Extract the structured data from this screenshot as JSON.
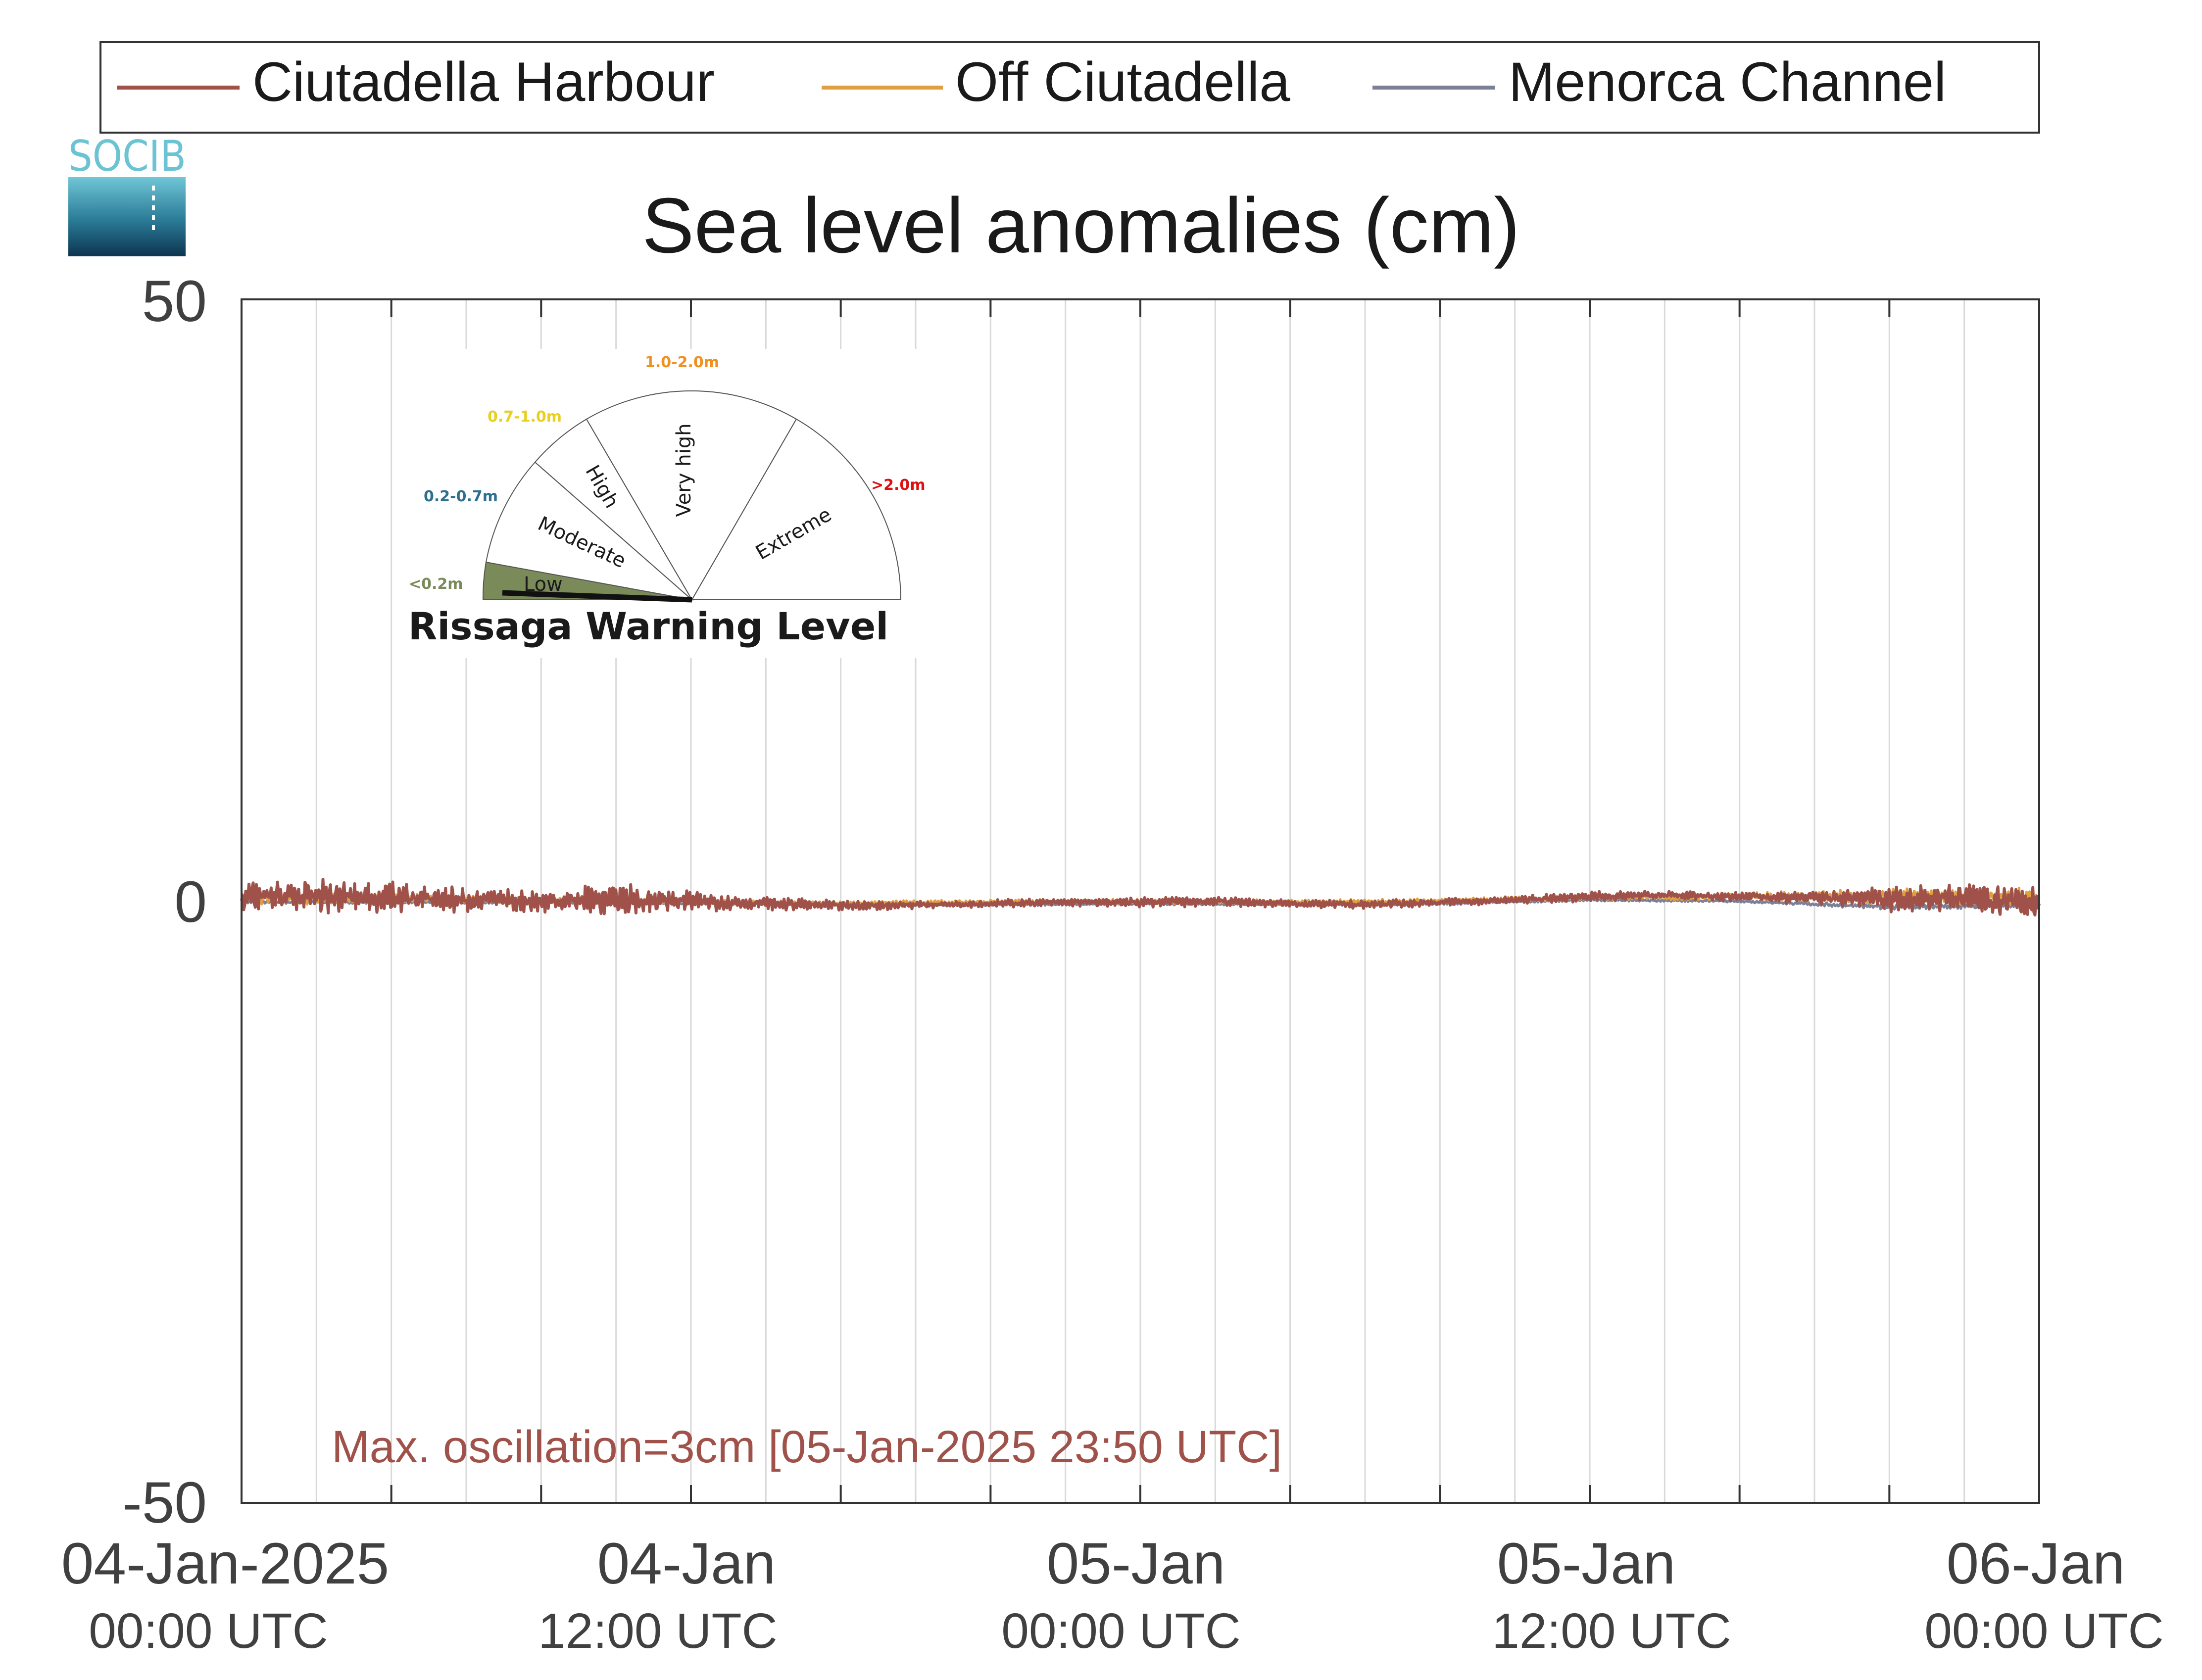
{
  "chart_data": {
    "type": "line",
    "title": "Sea level anomalies (cm)",
    "xlabel": "",
    "ylabel": "",
    "ylim": [
      -50,
      50
    ],
    "yticks": [
      -50,
      0,
      50
    ],
    "xlim": [
      "2025-01-04T00:00",
      "2025-01-06T00:00"
    ],
    "grid": "vertical every 2 h",
    "legend_position": "top",
    "xticks": [
      {
        "at": "2025-01-04T00:00",
        "line1": "04-Jan-2025",
        "line2": "00:00 UTC"
      },
      {
        "at": "2025-01-04T12:00",
        "line1": "04-Jan",
        "line2": "12:00 UTC"
      },
      {
        "at": "2025-01-05T00:00",
        "line1": "05-Jan",
        "line2": "00:00 UTC"
      },
      {
        "at": "2025-01-05T12:00",
        "line1": "05-Jan",
        "line2": "12:00 UTC"
      },
      {
        "at": "2025-01-06T00:00",
        "line1": "06-Jan",
        "line2": "00:00 UTC"
      }
    ],
    "series": [
      {
        "name": "Ciutadella Harbour",
        "color": "#a0524a",
        "x_hours": [
          0,
          2,
          4,
          6,
          8,
          10,
          12,
          14,
          16,
          18,
          20,
          22,
          24,
          26,
          28,
          30,
          32,
          34,
          36,
          38,
          40,
          42,
          44,
          46,
          48
        ],
        "y": [
          0.3,
          0.4,
          0.3,
          0.1,
          0.0,
          0.1,
          0.0,
          -0.2,
          -0.4,
          -0.3,
          -0.2,
          -0.1,
          -0.1,
          0.0,
          -0.2,
          -0.3,
          -0.1,
          0.1,
          0.4,
          0.5,
          0.4,
          0.3,
          0.2,
          0.3,
          -0.2
        ],
        "oscillation_amplitude": [
          1.2,
          1.4,
          1.2,
          1.0,
          0.9,
          1.3,
          0.8,
          0.5,
          0.4,
          0.3,
          0.3,
          0.3,
          0.4,
          0.4,
          0.3,
          0.3,
          0.3,
          0.3,
          0.4,
          0.3,
          0.4,
          0.5,
          1.0,
          1.2,
          1.5
        ]
      },
      {
        "name": "Off Ciutadella",
        "color": "#e0a040",
        "x_hours": [
          0,
          4,
          8,
          12,
          16,
          20,
          24,
          28,
          32,
          36,
          40,
          44,
          48
        ],
        "y": [
          0.2,
          0.2,
          0.1,
          0.0,
          -0.2,
          -0.1,
          0.0,
          -0.1,
          0.0,
          0.3,
          0.4,
          0.4,
          0.3
        ],
        "oscillation_amplitude": [
          0.5,
          0.4,
          0.3,
          0.2,
          0.2,
          0.2,
          0.2,
          0.2,
          0.2,
          0.2,
          0.3,
          0.6,
          0.8
        ]
      },
      {
        "name": "Menorca Channel",
        "color": "#7c8096",
        "x_hours": [
          0,
          4,
          8,
          12,
          16,
          20,
          24,
          28,
          32,
          36,
          40,
          44,
          48
        ],
        "y": [
          -0.1,
          -0.1,
          -0.1,
          -0.2,
          -0.3,
          -0.3,
          -0.2,
          -0.3,
          -0.2,
          0.1,
          0.0,
          -0.5,
          -0.4
        ],
        "oscillation_amplitude": [
          0.1,
          0.1,
          0.1,
          0.1,
          0.1,
          0.1,
          0.1,
          0.1,
          0.1,
          0.1,
          0.1,
          0.2,
          0.2
        ]
      }
    ],
    "annotation": "Max. oscillation=3cm [05-Jan-2025 23:50 UTC]",
    "annotation_color": "#a0524a"
  },
  "logo": {
    "text": "SOCIB"
  },
  "warning_gauge": {
    "title": "Rissaga Warning Level",
    "current_level": "Low",
    "sectors": [
      {
        "label": "Low",
        "range": "<0.2m",
        "range_color": "#7a8a58",
        "fill": "#7a8a58"
      },
      {
        "label": "Moderate",
        "range": "0.2-0.7m",
        "range_color": "#2c6f8f",
        "fill": "#ffffff"
      },
      {
        "label": "High",
        "range": "0.7-1.0m",
        "range_color": "#e8d020",
        "fill": "#ffffff"
      },
      {
        "label": "Very high",
        "range": "1.0-2.0m",
        "range_color": "#f09020",
        "fill": "#ffffff"
      },
      {
        "label": "Extreme",
        "range": ">2.0m",
        "range_color": "#e01010",
        "fill": "#ffffff"
      }
    ]
  }
}
